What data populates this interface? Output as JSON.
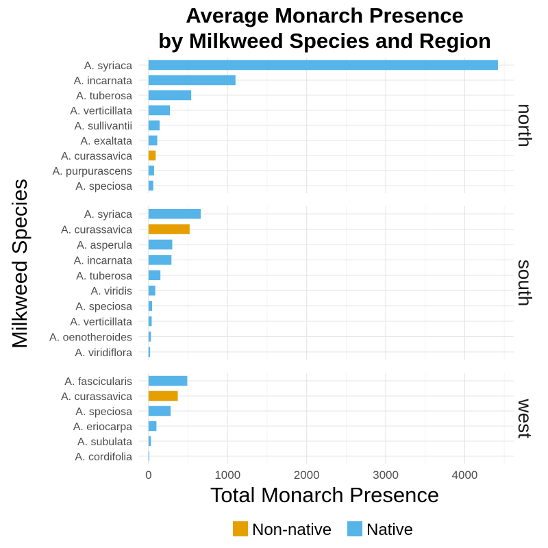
{
  "chart_data": {
    "type": "bar",
    "orientation": "horizontal",
    "title": "Average Monarch Presence\nby Milkweed Species and Region",
    "xlabel": "Total Monarch Presence",
    "ylabel": "Milkweed Species",
    "xlim": [
      -120,
      4620
    ],
    "xticks": [
      0,
      1000,
      2000,
      3000,
      4000
    ],
    "grid": true,
    "legend": {
      "position": "bottom",
      "items": [
        {
          "label": "Non-native",
          "color": "#E69F00"
        },
        {
          "label": "Native",
          "color": "#56B4E9"
        }
      ]
    },
    "colors": {
      "Non-native": "#E69F00",
      "Native": "#56B4E9"
    },
    "panels": [
      {
        "region": "north",
        "bars": [
          {
            "species": "A. syriaca",
            "value": 4420,
            "status": "Native"
          },
          {
            "species": "A. incarnata",
            "value": 1100,
            "status": "Native"
          },
          {
            "species": "A. tuberosa",
            "value": 540,
            "status": "Native"
          },
          {
            "species": "A. verticillata",
            "value": 270,
            "status": "Native"
          },
          {
            "species": "A. sullivantii",
            "value": 140,
            "status": "Native"
          },
          {
            "species": "A. exaltata",
            "value": 110,
            "status": "Native"
          },
          {
            "species": "A. curassavica",
            "value": 90,
            "status": "Non-native"
          },
          {
            "species": "A. purpurascens",
            "value": 70,
            "status": "Native"
          },
          {
            "species": "A. speciosa",
            "value": 60,
            "status": "Native"
          }
        ]
      },
      {
        "region": "south",
        "bars": [
          {
            "species": "A. syriaca",
            "value": 660,
            "status": "Native"
          },
          {
            "species": "A. curassavica",
            "value": 520,
            "status": "Non-native"
          },
          {
            "species": "A. asperula",
            "value": 300,
            "status": "Native"
          },
          {
            "species": "A. incarnata",
            "value": 290,
            "status": "Native"
          },
          {
            "species": "A. tuberosa",
            "value": 150,
            "status": "Native"
          },
          {
            "species": "A. viridis",
            "value": 85,
            "status": "Native"
          },
          {
            "species": "A. speciosa",
            "value": 45,
            "status": "Native"
          },
          {
            "species": "A. verticillata",
            "value": 40,
            "status": "Native"
          },
          {
            "species": "A. oenotheroides",
            "value": 30,
            "status": "Native"
          },
          {
            "species": "A. viridiflora",
            "value": 20,
            "status": "Native"
          }
        ]
      },
      {
        "region": "west",
        "bars": [
          {
            "species": "A. fascicularis",
            "value": 490,
            "status": "Native"
          },
          {
            "species": "A. curassavica",
            "value": 370,
            "status": "Non-native"
          },
          {
            "species": "A. speciosa",
            "value": 280,
            "status": "Native"
          },
          {
            "species": "A. eriocarpa",
            "value": 100,
            "status": "Native"
          },
          {
            "species": "A. subulata",
            "value": 30,
            "status": "Native"
          },
          {
            "species": "A. cordifolia",
            "value": 10,
            "status": "Native"
          }
        ]
      }
    ]
  }
}
